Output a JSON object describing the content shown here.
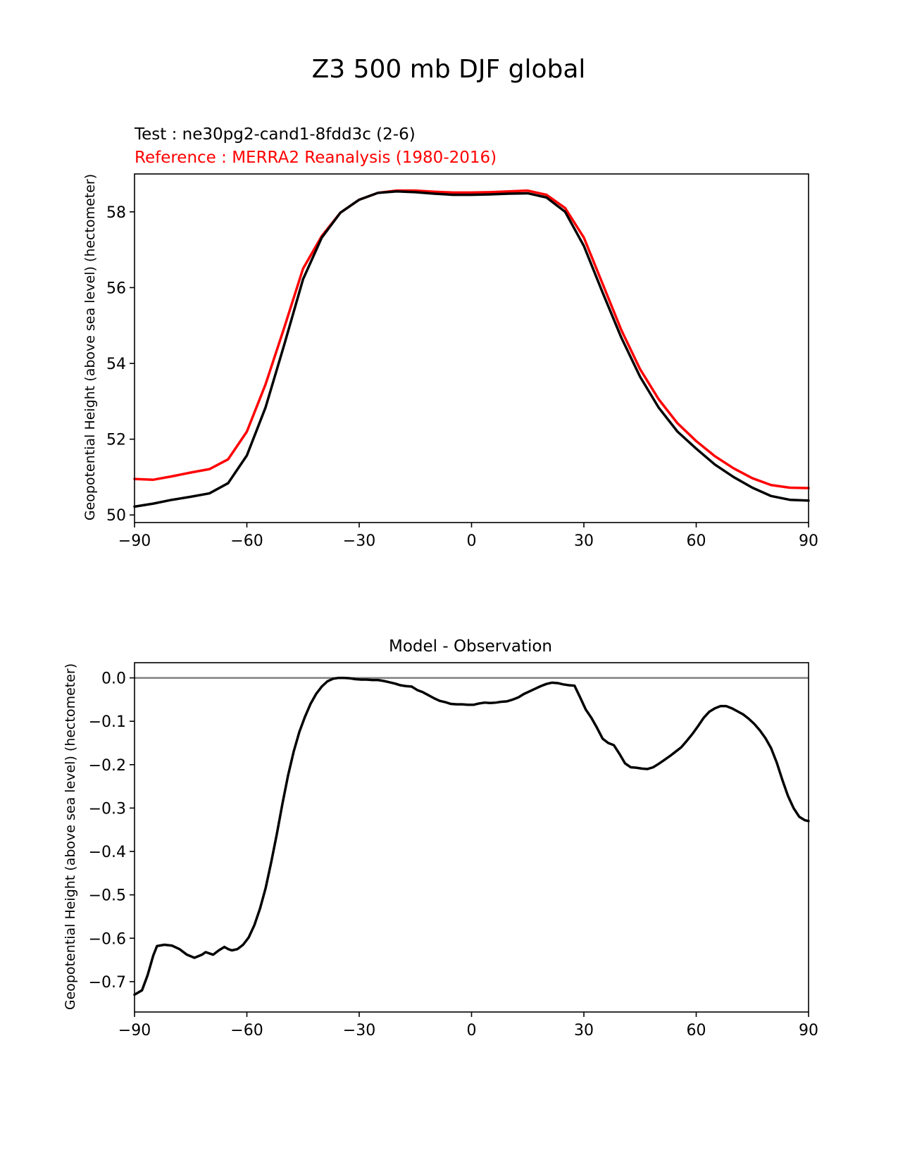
{
  "figure": {
    "suptitle": "Z3 500 mb DJF global"
  },
  "colors": {
    "test": "#000000",
    "reference": "#ff0000",
    "zero_line": "#808080",
    "axes": "#000000"
  },
  "chart_data": [
    {
      "type": "line",
      "test_label": "Test : ne30pg2-cand1-8fdd3c (2-6)",
      "reference_label": "Reference : MERRA2 Reanalysis (1980-2016)",
      "ylabel": "Geopotential Height (above sea level) (hectometer)",
      "xlabel": "",
      "xlim": [
        -90,
        90
      ],
      "ylim": [
        49.8,
        59.0
      ],
      "xticks": [
        -90,
        -60,
        -30,
        0,
        30,
        60,
        90
      ],
      "xtick_labels": [
        "−90",
        "−60",
        "−30",
        "0",
        "30",
        "60",
        "90"
      ],
      "yticks": [
        50,
        52,
        54,
        56,
        58
      ],
      "ytick_labels": [
        "50",
        "52",
        "54",
        "56",
        "58"
      ],
      "series": [
        {
          "name": "Test",
          "x": [
            -90,
            -85,
            -80,
            -75,
            -70,
            -65,
            -60,
            -55,
            -50,
            -45,
            -40,
            -35,
            -30,
            -25,
            -20,
            -15,
            -10,
            -5,
            0,
            5,
            10,
            15,
            20,
            25,
            30,
            35,
            40,
            45,
            50,
            55,
            60,
            65,
            70,
            75,
            80,
            85,
            90
          ],
          "values": [
            50.22,
            50.3,
            50.4,
            50.48,
            50.57,
            50.84,
            51.57,
            52.84,
            54.5,
            56.22,
            57.32,
            57.98,
            58.32,
            58.5,
            58.54,
            58.52,
            58.48,
            58.45,
            58.45,
            58.46,
            58.48,
            58.49,
            58.38,
            58.0,
            57.1,
            55.87,
            54.68,
            53.65,
            52.83,
            52.2,
            51.75,
            51.33,
            51.0,
            50.72,
            50.5,
            50.4,
            50.38
          ]
        },
        {
          "name": "Reference",
          "x": [
            -90,
            -85,
            -80,
            -75,
            -70,
            -65,
            -60,
            -55,
            -50,
            -45,
            -40,
            -35,
            -30,
            -25,
            -20,
            -15,
            -10,
            -5,
            0,
            5,
            10,
            15,
            20,
            25,
            30,
            35,
            40,
            45,
            50,
            55,
            60,
            65,
            70,
            75,
            80,
            85,
            90
          ],
          "values": [
            50.95,
            50.93,
            51.02,
            51.12,
            51.21,
            51.47,
            52.2,
            53.45,
            54.95,
            56.5,
            57.36,
            57.98,
            58.32,
            58.5,
            58.56,
            58.56,
            58.53,
            58.51,
            58.51,
            58.52,
            58.54,
            58.56,
            58.45,
            58.1,
            57.32,
            56.1,
            54.88,
            53.85,
            53.05,
            52.42,
            51.95,
            51.55,
            51.23,
            50.97,
            50.79,
            50.72,
            50.71
          ]
        }
      ]
    },
    {
      "type": "line",
      "title": "Model - Observation",
      "ylabel": "Geopotential Height (above sea level) (hectometer)",
      "xlabel": "",
      "xlim": [
        -90,
        90
      ],
      "ylim": [
        -0.77,
        0.035
      ],
      "xticks": [
        -90,
        -60,
        -30,
        0,
        30,
        60,
        90
      ],
      "xtick_labels": [
        "−90",
        "−60",
        "−30",
        "0",
        "30",
        "60",
        "90"
      ],
      "yticks": [
        0.0,
        -0.1,
        -0.2,
        -0.3,
        -0.4,
        -0.5,
        -0.6,
        -0.7
      ],
      "ytick_labels": [
        "0.0",
        "−0.1",
        "−0.2",
        "−0.3",
        "−0.4",
        "−0.5",
        "−0.6",
        "−0.7"
      ],
      "zero_line": 0.0,
      "series": [
        {
          "name": "Model - Observation",
          "x": [
            -90,
            -88,
            -86.5,
            -85,
            -84,
            -82,
            -80,
            -78,
            -76,
            -74,
            -72,
            -71,
            -69,
            -67.5,
            -66,
            -65,
            -64,
            -62.5,
            -61,
            -59.5,
            -58,
            -56.5,
            -55,
            -53.5,
            -52,
            -50.5,
            -49,
            -47.5,
            -46,
            -44.5,
            -43,
            -41.5,
            -40,
            -38.5,
            -37,
            -35.5,
            -34,
            -32.5,
            -31,
            -29.5,
            -28,
            -26.5,
            -25,
            -23.5,
            -22,
            -20.5,
            -19,
            -17.5,
            -16,
            -14.5,
            -13,
            -11.5,
            -10,
            -8.5,
            -7,
            -5.5,
            -4,
            -2.5,
            -1,
            0.5,
            2,
            3.5,
            5,
            6.5,
            8,
            9.5,
            11,
            12.5,
            14,
            15.5,
            17,
            18.5,
            20,
            21.5,
            23,
            24.5,
            26,
            27.5,
            29,
            30.5,
            32,
            33.5,
            35,
            36.5,
            38,
            39.5,
            41,
            42.5,
            44,
            45.5,
            47,
            48.5,
            50,
            51.5,
            53,
            54.5,
            56,
            57.5,
            59,
            60.5,
            62,
            63.5,
            65,
            66.5,
            68,
            69.5,
            71,
            72.5,
            74,
            75.5,
            77,
            78.5,
            80,
            81.5,
            83,
            84.5,
            86,
            87.5,
            89,
            90
          ],
          "values": [
            -0.73,
            -0.72,
            -0.685,
            -0.64,
            -0.618,
            -0.615,
            -0.617,
            -0.625,
            -0.638,
            -0.645,
            -0.638,
            -0.632,
            -0.638,
            -0.628,
            -0.62,
            -0.625,
            -0.628,
            -0.625,
            -0.615,
            -0.598,
            -0.57,
            -0.532,
            -0.485,
            -0.425,
            -0.36,
            -0.29,
            -0.225,
            -0.17,
            -0.125,
            -0.09,
            -0.06,
            -0.037,
            -0.02,
            -0.008,
            -0.002,
            0.0,
            0.0,
            -0.001,
            -0.003,
            -0.004,
            -0.004,
            -0.005,
            -0.005,
            -0.007,
            -0.01,
            -0.013,
            -0.017,
            -0.019,
            -0.02,
            -0.028,
            -0.033,
            -0.04,
            -0.047,
            -0.053,
            -0.056,
            -0.06,
            -0.061,
            -0.061,
            -0.062,
            -0.062,
            -0.059,
            -0.057,
            -0.058,
            -0.057,
            -0.055,
            -0.054,
            -0.05,
            -0.045,
            -0.037,
            -0.031,
            -0.025,
            -0.019,
            -0.014,
            -0.011,
            -0.012,
            -0.015,
            -0.017,
            -0.018,
            -0.045,
            -0.073,
            -0.092,
            -0.115,
            -0.14,
            -0.15,
            -0.155,
            -0.175,
            -0.197,
            -0.206,
            -0.207,
            -0.209,
            -0.21,
            -0.206,
            -0.198,
            -0.189,
            -0.18,
            -0.17,
            -0.16,
            -0.145,
            -0.129,
            -0.111,
            -0.092,
            -0.078,
            -0.07,
            -0.065,
            -0.065,
            -0.07,
            -0.077,
            -0.084,
            -0.094,
            -0.106,
            -0.121,
            -0.139,
            -0.162,
            -0.195,
            -0.235,
            -0.272,
            -0.3,
            -0.32,
            -0.328,
            -0.33
          ]
        }
      ]
    }
  ]
}
